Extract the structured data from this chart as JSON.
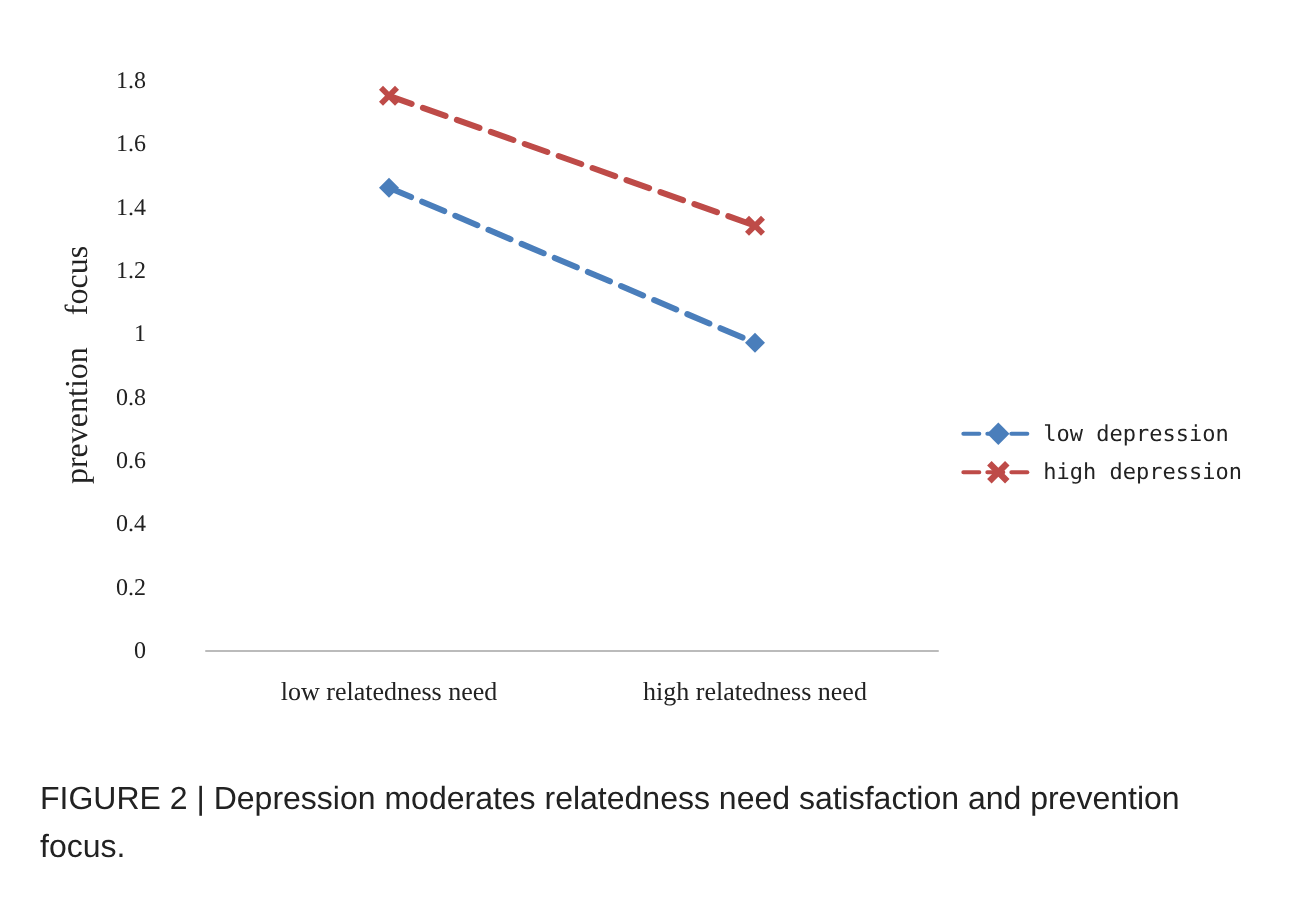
{
  "chart_data": {
    "type": "line",
    "categories": [
      "low relatedness need",
      "high relatedness need"
    ],
    "series": [
      {
        "name": "low depression",
        "color": "#4a7ebb",
        "values": [
          1.46,
          0.97
        ],
        "marker": "diamond"
      },
      {
        "name": "high depression",
        "color": "#be4b48",
        "values": [
          1.75,
          1.34
        ],
        "marker": "cross"
      }
    ],
    "ylabel": "prevention    focus",
    "ylim": [
      0,
      1.8
    ],
    "yticks": [
      0,
      0.2,
      0.4,
      0.6,
      0.8,
      1,
      1.2,
      1.4,
      1.6,
      1.8
    ],
    "grid": false,
    "legend": "right",
    "line_style": "dashed",
    "annotations": [
      "FIGURE 2 | Depression moderates relatedness need satisfaction and prevention focus."
    ]
  }
}
